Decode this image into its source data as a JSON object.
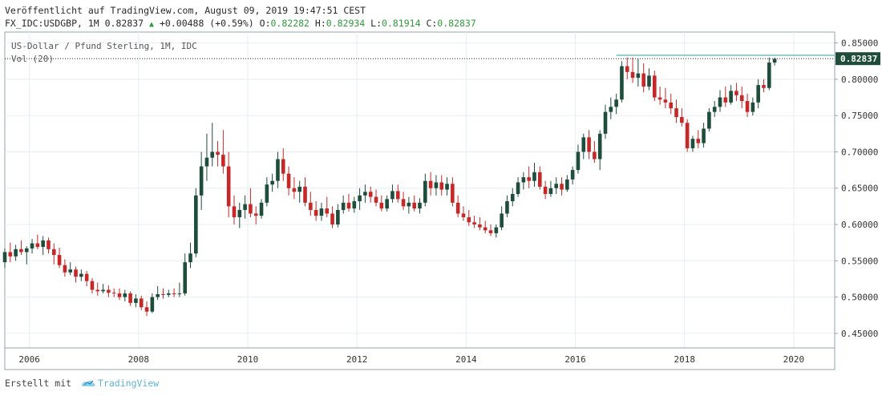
{
  "header": {
    "line1": "Veröffentlicht auf TradingView.com, August 09, 2019 19:47:51 CEST",
    "symbol_info": "FX_IDC:USDGBP, 1M 0.82837",
    "change": "+0.00488 (+0.59%)",
    "o_label": "O:",
    "o_value": "0.82282",
    "h_label": "H:",
    "h_value": "0.82934",
    "l_label": "L:",
    "l_value": "0.81914",
    "c_label": "C:",
    "c_value": "0.82837"
  },
  "legend": {
    "title": "US-Dollar / Pfund Sterling, 1M, IDC",
    "volume": "Vol (20)"
  },
  "footer": {
    "made_with": "Erstellt mit",
    "brand": "TradingView"
  },
  "colors": {
    "up": "#1e4d3c",
    "down": "#c62828",
    "grid": "#e6eef2",
    "axis_text": "#333333",
    "price_label_bg": "#1e4d3c",
    "high_line": "#26a69a"
  },
  "chart_data": {
    "type": "candlestick",
    "title": "US-Dollar / Pfund Sterling, 1M, IDC",
    "last_price": 0.82837,
    "last_price_label": "0.82837",
    "ylim": [
      0.43,
      0.865
    ],
    "xlim": [
      2005.55,
      2020.75
    ],
    "y_ticks": [
      "0.85000",
      "0.80000",
      "0.75000",
      "0.70000",
      "0.65000",
      "0.60000",
      "0.55000",
      "0.50000",
      "0.45000"
    ],
    "y_tick_values": [
      0.85,
      0.8,
      0.75,
      0.7,
      0.65,
      0.6,
      0.55,
      0.5,
      0.45
    ],
    "x_ticks": [
      "2006",
      "2008",
      "2010",
      "2012",
      "2014",
      "2016",
      "2018",
      "2020"
    ],
    "x_tick_values": [
      2006,
      2008,
      2010,
      2012,
      2014,
      2016,
      2018,
      2020
    ],
    "reference_high": 0.833,
    "candles": [
      [
        2005.55,
        0.548,
        0.567,
        0.54,
        0.562
      ],
      [
        2005.65,
        0.562,
        0.575,
        0.548,
        0.556
      ],
      [
        2005.75,
        0.556,
        0.572,
        0.55,
        0.566
      ],
      [
        2005.85,
        0.566,
        0.578,
        0.558,
        0.562
      ],
      [
        2005.95,
        0.562,
        0.57,
        0.545,
        0.567
      ],
      [
        2006.05,
        0.567,
        0.58,
        0.56,
        0.574
      ],
      [
        2006.15,
        0.574,
        0.586,
        0.566,
        0.569
      ],
      [
        2006.25,
        0.569,
        0.584,
        0.558,
        0.578
      ],
      [
        2006.35,
        0.578,
        0.582,
        0.56,
        0.566
      ],
      [
        2006.45,
        0.566,
        0.574,
        0.545,
        0.558
      ],
      [
        2006.55,
        0.558,
        0.568,
        0.54,
        0.544
      ],
      [
        2006.65,
        0.544,
        0.552,
        0.528,
        0.534
      ],
      [
        2006.75,
        0.534,
        0.548,
        0.53,
        0.538
      ],
      [
        2006.85,
        0.538,
        0.542,
        0.52,
        0.528
      ],
      [
        2006.95,
        0.528,
        0.538,
        0.522,
        0.532
      ],
      [
        2007.05,
        0.532,
        0.536,
        0.515,
        0.522
      ],
      [
        2007.15,
        0.522,
        0.526,
        0.505,
        0.51
      ],
      [
        2007.25,
        0.51,
        0.52,
        0.502,
        0.508
      ],
      [
        2007.35,
        0.508,
        0.518,
        0.505,
        0.51
      ],
      [
        2007.45,
        0.51,
        0.516,
        0.5,
        0.506
      ],
      [
        2007.55,
        0.506,
        0.512,
        0.5,
        0.505
      ],
      [
        2007.65,
        0.505,
        0.512,
        0.496,
        0.5
      ],
      [
        2007.75,
        0.5,
        0.51,
        0.494,
        0.505
      ],
      [
        2007.85,
        0.505,
        0.508,
        0.488,
        0.492
      ],
      [
        2007.95,
        0.492,
        0.504,
        0.486,
        0.498
      ],
      [
        2008.05,
        0.498,
        0.502,
        0.482,
        0.486
      ],
      [
        2008.15,
        0.486,
        0.494,
        0.474,
        0.48
      ],
      [
        2008.25,
        0.48,
        0.505,
        0.478,
        0.5
      ],
      [
        2008.35,
        0.5,
        0.515,
        0.496,
        0.504
      ],
      [
        2008.45,
        0.504,
        0.512,
        0.498,
        0.503
      ],
      [
        2008.55,
        0.503,
        0.51,
        0.5,
        0.505
      ],
      [
        2008.65,
        0.505,
        0.512,
        0.5,
        0.504
      ],
      [
        2008.75,
        0.504,
        0.52,
        0.5,
        0.505
      ],
      [
        2008.85,
        0.505,
        0.56,
        0.502,
        0.548
      ],
      [
        2008.95,
        0.548,
        0.575,
        0.54,
        0.56
      ],
      [
        2009.05,
        0.56,
        0.65,
        0.555,
        0.64
      ],
      [
        2009.15,
        0.64,
        0.7,
        0.62,
        0.68
      ],
      [
        2009.25,
        0.68,
        0.725,
        0.66,
        0.692
      ],
      [
        2009.35,
        0.692,
        0.74,
        0.68,
        0.7
      ],
      [
        2009.45,
        0.7,
        0.715,
        0.68,
        0.696
      ],
      [
        2009.55,
        0.696,
        0.73,
        0.67,
        0.68
      ],
      [
        2009.65,
        0.68,
        0.7,
        0.61,
        0.625
      ],
      [
        2009.75,
        0.625,
        0.64,
        0.6,
        0.61
      ],
      [
        2009.85,
        0.61,
        0.63,
        0.595,
        0.62
      ],
      [
        2009.95,
        0.62,
        0.64,
        0.608,
        0.628
      ],
      [
        2010.05,
        0.628,
        0.65,
        0.61,
        0.615
      ],
      [
        2010.15,
        0.615,
        0.625,
        0.6,
        0.612
      ],
      [
        2010.25,
        0.612,
        0.635,
        0.608,
        0.63
      ],
      [
        2010.35,
        0.63,
        0.665,
        0.625,
        0.655
      ],
      [
        2010.45,
        0.655,
        0.67,
        0.645,
        0.66
      ],
      [
        2010.55,
        0.66,
        0.7,
        0.65,
        0.69
      ],
      [
        2010.65,
        0.69,
        0.705,
        0.66,
        0.67
      ],
      [
        2010.75,
        0.67,
        0.68,
        0.64,
        0.65
      ],
      [
        2010.85,
        0.65,
        0.665,
        0.635,
        0.645
      ],
      [
        2010.95,
        0.645,
        0.66,
        0.63,
        0.652
      ],
      [
        2011.05,
        0.652,
        0.665,
        0.625,
        0.63
      ],
      [
        2011.15,
        0.63,
        0.645,
        0.612,
        0.62
      ],
      [
        2011.25,
        0.62,
        0.632,
        0.605,
        0.612
      ],
      [
        2011.35,
        0.612,
        0.63,
        0.605,
        0.622
      ],
      [
        2011.45,
        0.622,
        0.638,
        0.61,
        0.615
      ],
      [
        2011.55,
        0.615,
        0.625,
        0.595,
        0.6
      ],
      [
        2011.65,
        0.6,
        0.628,
        0.596,
        0.62
      ],
      [
        2011.75,
        0.62,
        0.64,
        0.615,
        0.63
      ],
      [
        2011.85,
        0.63,
        0.642,
        0.618,
        0.622
      ],
      [
        2011.95,
        0.622,
        0.638,
        0.616,
        0.632
      ],
      [
        2012.05,
        0.632,
        0.65,
        0.62,
        0.64
      ],
      [
        2012.15,
        0.64,
        0.655,
        0.63,
        0.645
      ],
      [
        2012.25,
        0.645,
        0.652,
        0.63,
        0.638
      ],
      [
        2012.35,
        0.638,
        0.648,
        0.625,
        0.63
      ],
      [
        2012.45,
        0.63,
        0.64,
        0.618,
        0.622
      ],
      [
        2012.55,
        0.622,
        0.64,
        0.618,
        0.635
      ],
      [
        2012.65,
        0.635,
        0.655,
        0.63,
        0.646
      ],
      [
        2012.75,
        0.646,
        0.655,
        0.63,
        0.635
      ],
      [
        2012.85,
        0.635,
        0.645,
        0.62,
        0.625
      ],
      [
        2012.95,
        0.625,
        0.638,
        0.615,
        0.63
      ],
      [
        2013.05,
        0.63,
        0.64,
        0.618,
        0.622
      ],
      [
        2013.15,
        0.622,
        0.636,
        0.615,
        0.63
      ],
      [
        2013.25,
        0.63,
        0.67,
        0.625,
        0.66
      ],
      [
        2013.35,
        0.66,
        0.672,
        0.64,
        0.65
      ],
      [
        2013.45,
        0.65,
        0.668,
        0.64,
        0.658
      ],
      [
        2013.55,
        0.658,
        0.668,
        0.64,
        0.648
      ],
      [
        2013.65,
        0.648,
        0.665,
        0.64,
        0.656
      ],
      [
        2013.75,
        0.656,
        0.665,
        0.625,
        0.63
      ],
      [
        2013.85,
        0.63,
        0.64,
        0.61,
        0.615
      ],
      [
        2013.95,
        0.615,
        0.625,
        0.605,
        0.61
      ],
      [
        2014.05,
        0.61,
        0.62,
        0.598,
        0.603
      ],
      [
        2014.15,
        0.603,
        0.612,
        0.595,
        0.6
      ],
      [
        2014.25,
        0.6,
        0.61,
        0.592,
        0.596
      ],
      [
        2014.35,
        0.596,
        0.605,
        0.588,
        0.592
      ],
      [
        2014.45,
        0.592,
        0.6,
        0.584,
        0.588
      ],
      [
        2014.55,
        0.588,
        0.6,
        0.582,
        0.596
      ],
      [
        2014.65,
        0.596,
        0.625,
        0.592,
        0.615
      ],
      [
        2014.75,
        0.615,
        0.64,
        0.61,
        0.632
      ],
      [
        2014.85,
        0.632,
        0.65,
        0.625,
        0.642
      ],
      [
        2014.95,
        0.642,
        0.665,
        0.638,
        0.658
      ],
      [
        2015.05,
        0.658,
        0.672,
        0.648,
        0.665
      ],
      [
        2015.15,
        0.665,
        0.68,
        0.65,
        0.66
      ],
      [
        2015.25,
        0.66,
        0.685,
        0.652,
        0.672
      ],
      [
        2015.35,
        0.672,
        0.68,
        0.648,
        0.652
      ],
      [
        2015.45,
        0.652,
        0.66,
        0.635,
        0.642
      ],
      [
        2015.55,
        0.642,
        0.66,
        0.638,
        0.65
      ],
      [
        2015.65,
        0.65,
        0.665,
        0.642,
        0.656
      ],
      [
        2015.75,
        0.656,
        0.665,
        0.64,
        0.648
      ],
      [
        2015.85,
        0.648,
        0.668,
        0.645,
        0.662
      ],
      [
        2015.95,
        0.662,
        0.68,
        0.655,
        0.675
      ],
      [
        2016.05,
        0.675,
        0.71,
        0.67,
        0.7
      ],
      [
        2016.15,
        0.7,
        0.725,
        0.69,
        0.72
      ],
      [
        2016.25,
        0.72,
        0.73,
        0.69,
        0.7
      ],
      [
        2016.35,
        0.7,
        0.715,
        0.685,
        0.69
      ],
      [
        2016.45,
        0.69,
        0.73,
        0.675,
        0.725
      ],
      [
        2016.55,
        0.725,
        0.765,
        0.718,
        0.755
      ],
      [
        2016.65,
        0.755,
        0.775,
        0.745,
        0.762
      ],
      [
        2016.75,
        0.762,
        0.78,
        0.752,
        0.772
      ],
      [
        2016.85,
        0.772,
        0.825,
        0.768,
        0.818
      ],
      [
        2016.95,
        0.818,
        0.83,
        0.8,
        0.81
      ],
      [
        2017.05,
        0.81,
        0.83,
        0.795,
        0.802
      ],
      [
        2017.15,
        0.802,
        0.828,
        0.79,
        0.808
      ],
      [
        2017.25,
        0.808,
        0.822,
        0.782,
        0.79
      ],
      [
        2017.35,
        0.79,
        0.815,
        0.785,
        0.805
      ],
      [
        2017.45,
        0.805,
        0.812,
        0.77,
        0.775
      ],
      [
        2017.55,
        0.775,
        0.79,
        0.765,
        0.772
      ],
      [
        2017.65,
        0.772,
        0.788,
        0.76,
        0.768
      ],
      [
        2017.75,
        0.768,
        0.78,
        0.752,
        0.76
      ],
      [
        2017.85,
        0.76,
        0.772,
        0.74,
        0.748
      ],
      [
        2017.95,
        0.748,
        0.76,
        0.735,
        0.74
      ],
      [
        2018.05,
        0.74,
        0.745,
        0.7,
        0.705
      ],
      [
        2018.15,
        0.705,
        0.722,
        0.7,
        0.718
      ],
      [
        2018.25,
        0.718,
        0.73,
        0.705,
        0.712
      ],
      [
        2018.35,
        0.712,
        0.74,
        0.706,
        0.732
      ],
      [
        2018.45,
        0.732,
        0.76,
        0.728,
        0.755
      ],
      [
        2018.55,
        0.755,
        0.77,
        0.748,
        0.762
      ],
      [
        2018.65,
        0.762,
        0.785,
        0.755,
        0.775
      ],
      [
        2018.75,
        0.775,
        0.79,
        0.762,
        0.768
      ],
      [
        2018.85,
        0.768,
        0.792,
        0.765,
        0.784
      ],
      [
        2018.95,
        0.784,
        0.795,
        0.77,
        0.778
      ],
      [
        2019.05,
        0.778,
        0.79,
        0.76,
        0.77
      ],
      [
        2019.15,
        0.77,
        0.78,
        0.748,
        0.755
      ],
      [
        2019.25,
        0.755,
        0.775,
        0.75,
        0.768
      ],
      [
        2019.35,
        0.768,
        0.8,
        0.76,
        0.792
      ],
      [
        2019.45,
        0.792,
        0.8,
        0.782,
        0.788
      ],
      [
        2019.55,
        0.788,
        0.83,
        0.785,
        0.823
      ],
      [
        2019.65,
        0.823,
        0.83,
        0.819,
        0.828
      ]
    ]
  }
}
